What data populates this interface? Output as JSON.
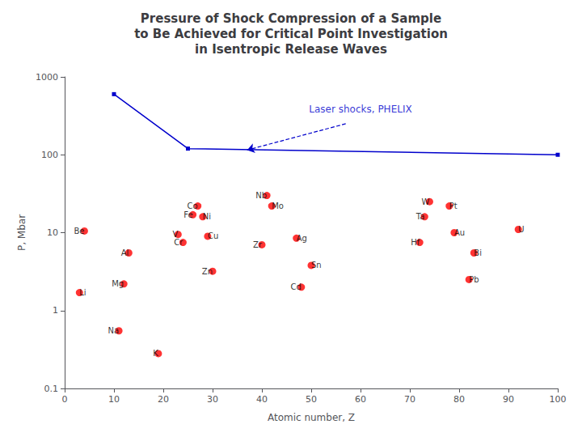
{
  "chart_data": {
    "type": "scatter",
    "title": "Pressure of Shock Compression of a Sample\nto Be Achieved for Critical Point Investigation\nin Isentropic Release Waves",
    "xlabel": "Atomic number, Z",
    "ylabel": "P, Mbar",
    "log": "y",
    "xlim": [
      0,
      100
    ],
    "ylim": [
      0.1,
      1000
    ],
    "xticks": [
      0,
      10,
      20,
      30,
      40,
      50,
      60,
      70,
      80,
      90,
      100
    ],
    "yticks": [
      0.1,
      1,
      10,
      100,
      1000
    ],
    "grid": false,
    "series": [
      {
        "type": "scatter",
        "color": "#ff0000",
        "marker": "circle",
        "x": [
          4,
          3,
          13,
          12,
          11,
          19,
          23,
          24,
          26,
          27,
          28,
          29,
          30,
          41,
          42,
          40,
          47,
          48,
          50,
          73,
          74,
          72,
          78,
          79,
          83,
          82,
          92
        ],
        "values": [
          10.5,
          1.7,
          5.5,
          2.2,
          0.55,
          0.28,
          9.5,
          7.5,
          17.0,
          22.0,
          16.0,
          9.0,
          3.2,
          30.0,
          22.0,
          7.0,
          8.5,
          2.0,
          3.8,
          16.0,
          25.0,
          7.5,
          22.0,
          10.0,
          5.5,
          2.5,
          11.0
        ],
        "labels": [
          "Be",
          "Li",
          "Al",
          "Mg",
          "Na",
          "K",
          "V",
          "Cr",
          "Fe",
          "Co",
          "Ni",
          "Cu",
          "Zn",
          "Nb",
          "Mo",
          "Zr",
          "Ag",
          "Cd",
          "Sn",
          "Ta",
          "W",
          "Hf",
          "Pt",
          "Au",
          "Bi",
          "Pb",
          "U"
        ]
      },
      {
        "type": "line",
        "color": "#0000cc",
        "marker": "square",
        "line_style": "solid",
        "x": [
          10,
          25,
          100
        ],
        "values": [
          600,
          120,
          100
        ]
      }
    ],
    "annotations": [
      {
        "text": "Laser shocks, PHELIX",
        "x": 60,
        "y": 320,
        "color": "#0000cc"
      }
    ],
    "arrows": [
      {
        "x": 57,
        "y": 250,
        "x_end": 37,
        "y_end": 115,
        "color": "#0000cc",
        "line_style": "dashed"
      }
    ]
  }
}
